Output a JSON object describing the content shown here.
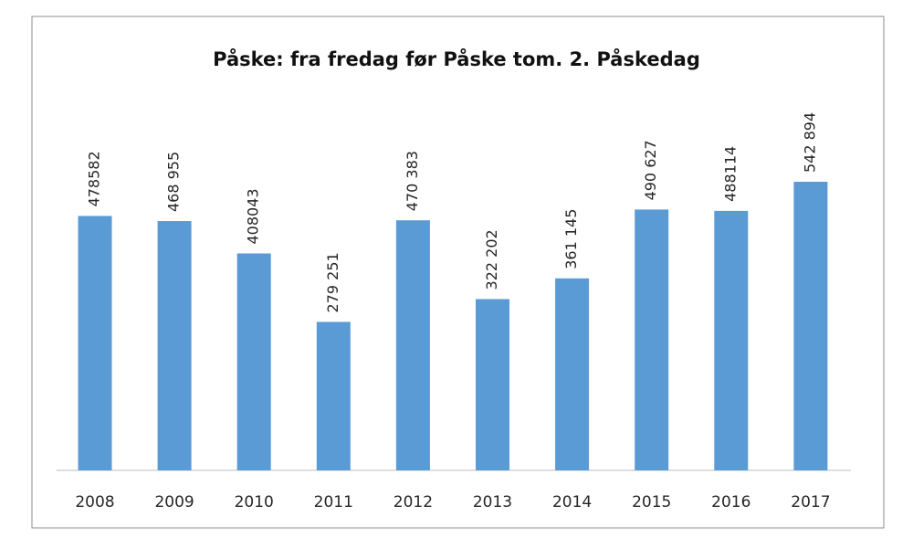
{
  "chart_data": {
    "type": "bar",
    "title": "Påske: fra fredag før Påske tom. 2. Påskedag",
    "categories": [
      "2008",
      "2009",
      "2010",
      "2011",
      "2012",
      "2013",
      "2014",
      "2015",
      "2016",
      "2017"
    ],
    "values": [
      478582,
      468955,
      408043,
      279251,
      470383,
      322202,
      361145,
      490627,
      488114,
      542894
    ],
    "value_labels": [
      "478582",
      "468 955",
      "408043",
      "279 251",
      "470 383",
      "322 202",
      "361 145",
      "490 627",
      "488114",
      "542 894"
    ],
    "color": "#5b9bd5"
  }
}
